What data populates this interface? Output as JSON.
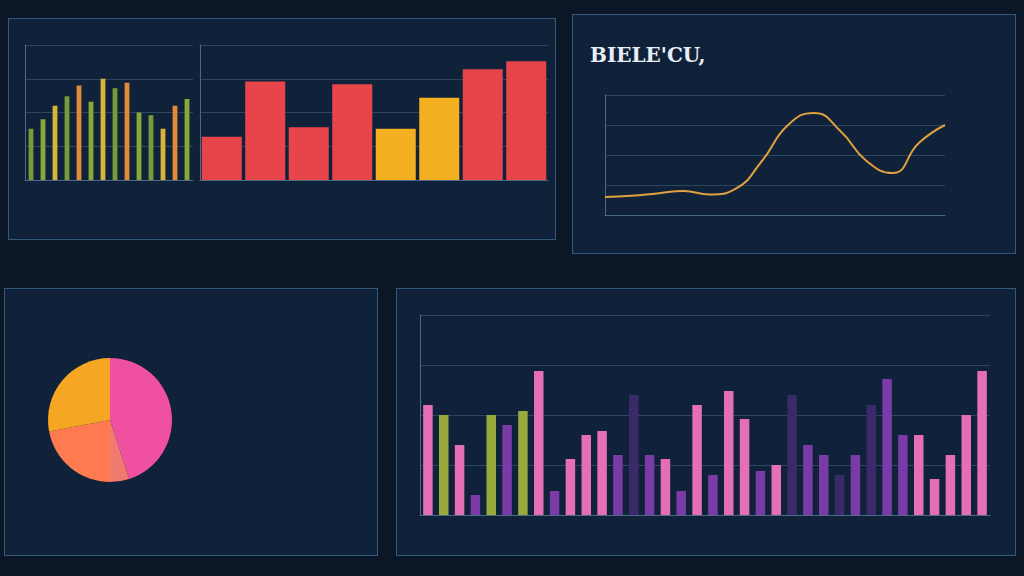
{
  "chart_data": [
    {
      "type": "bar",
      "categories": [
        null,
        null,
        null,
        null,
        null,
        null,
        null,
        null,
        null,
        null,
        null,
        null,
        null,
        null
      ],
      "values": [
        38,
        45,
        55,
        62,
        70,
        58,
        75,
        68,
        72,
        50,
        48,
        38,
        55,
        60
      ],
      "colors": [
        "#7a9a3a",
        "#8aa83a",
        "#d8b43a",
        "#7a9a3a",
        "#e08a3a",
        "#8aa83a",
        "#d8b43a",
        "#7a9a3a",
        "#e08a3a",
        "#8aa83a",
        "#7a9a3a",
        "#d8b43a",
        "#e08a3a",
        "#8aa83a"
      ],
      "ylim": [
        0,
        100
      ],
      "yticks": [
        0,
        25,
        50,
        75,
        100
      ],
      "grid": true,
      "tick_labels": false
    },
    {
      "type": "bar",
      "categories": [
        null,
        null,
        null,
        null,
        null,
        null,
        null,
        null
      ],
      "values": [
        32,
        73,
        39,
        71,
        38,
        61,
        82,
        88
      ],
      "colors": [
        "#e8454a",
        "#e8454a",
        "#e8454a",
        "#e8454a",
        "#f5b021",
        "#f5b021",
        "#e8454a",
        "#e8454a"
      ],
      "ylim": [
        0,
        100
      ],
      "yticks": [
        0,
        25,
        50,
        75,
        100
      ],
      "grid": true,
      "tick_labels": false
    },
    {
      "type": "line",
      "title": "BIELE'CU,",
      "categories": [
        null,
        null,
        null,
        null,
        null,
        null,
        null,
        null,
        null,
        null,
        null,
        null,
        null,
        null
      ],
      "values": [
        15,
        16,
        18,
        20,
        17,
        22,
        45,
        75,
        85,
        70,
        45,
        35,
        60,
        75
      ],
      "color": "#e0a040",
      "marker": "none",
      "line_style": "solid",
      "ylim": [
        0,
        100
      ],
      "yticks": [
        0,
        25,
        50,
        75,
        100
      ],
      "grid": true,
      "tick_labels": false
    },
    {
      "type": "pie",
      "categories": [
        null,
        null,
        null,
        null
      ],
      "values": [
        45,
        5,
        22,
        28
      ],
      "colors": [
        "#f050a0",
        "#f07a70",
        "#ff7a50",
        "#f5a623"
      ]
    },
    {
      "type": "bar",
      "categories": [
        null,
        null,
        null,
        null,
        null,
        null,
        null,
        null,
        null,
        null,
        null,
        null,
        null,
        null,
        null,
        null,
        null,
        null,
        null,
        null,
        null,
        null,
        null,
        null,
        null,
        null,
        null,
        null,
        null,
        null,
        null,
        null,
        null,
        null,
        null,
        null
      ],
      "values": [
        55,
        50,
        35,
        10,
        50,
        45,
        52,
        72,
        12,
        28,
        40,
        42,
        30,
        60,
        30,
        28,
        12,
        55,
        20,
        62,
        48,
        22,
        25,
        60,
        35,
        30,
        20,
        30,
        55,
        68,
        40,
        40,
        18,
        30,
        50,
        72
      ],
      "colors": [
        "#e46fb5",
        "#9aaa3a",
        "#e46fb5",
        "#7a3aa8",
        "#9aaa3a",
        "#7a3aa8",
        "#9aaa3a",
        "#e46fb5",
        "#7a3aa8",
        "#e46fb5",
        "#e46fb5",
        "#e46fb5",
        "#7a3aa8",
        "#3a2a6a",
        "#7a3aa8",
        "#e46fb5",
        "#7a3aa8",
        "#e46fb5",
        "#7a3aa8",
        "#e46fb5",
        "#e46fb5",
        "#7a3aa8",
        "#e46fb5",
        "#3a2a6a",
        "#7a3aa8",
        "#7a3aa8",
        "#3a2a6a",
        "#7a3aa8",
        "#3a2a6a",
        "#7a3aa8",
        "#7a3aa8",
        "#e46fb5",
        "#e46fb5",
        "#e46fb5",
        "#e46fb5",
        "#e46fb5"
      ],
      "ylim": [
        0,
        100
      ],
      "yticks": [
        0,
        25,
        50,
        75,
        100
      ],
      "grid": true,
      "tick_labels": false
    }
  ]
}
